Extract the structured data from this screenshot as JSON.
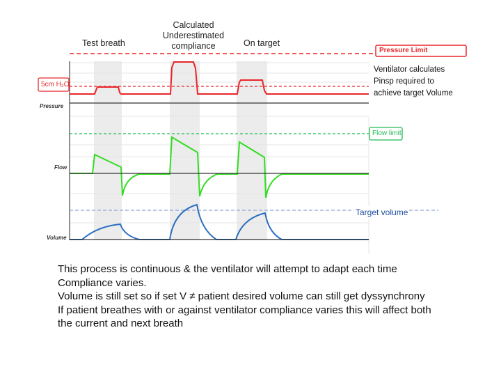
{
  "headers": {
    "test_breath": "Test breath",
    "underestimated": [
      "Calculated",
      "Underestimated",
      "compliance"
    ],
    "on_target": "On target"
  },
  "labels": {
    "pressure_limit": "Pressure Limit",
    "cmh2o": "5cm H₂O",
    "pressure": "Pressure",
    "flow": "Flow",
    "volume": "Volume",
    "flow_limit": "Flow limit",
    "target_volume": "Target volume"
  },
  "notes": {
    "ventilator": [
      "Ventilator calculates",
      "Pinsp required to",
      "achieve target Volume"
    ]
  },
  "body": [
    "This process is continuous & the ventilator will attempt to adapt each time",
    "Compliance varies.",
    "Volume is still set so if set V ≠ patient desired volume can still get dyssynchrony",
    "If patient breathes with or against ventilator compliance varies this will affect both",
    "the current and next breath"
  ],
  "colors": {
    "pressure": "#e8262a",
    "flow": "#33dd22",
    "volume": "#2a6fc0",
    "limit_dash": "#22bb55",
    "target_dash": "#8ea4d8"
  }
}
